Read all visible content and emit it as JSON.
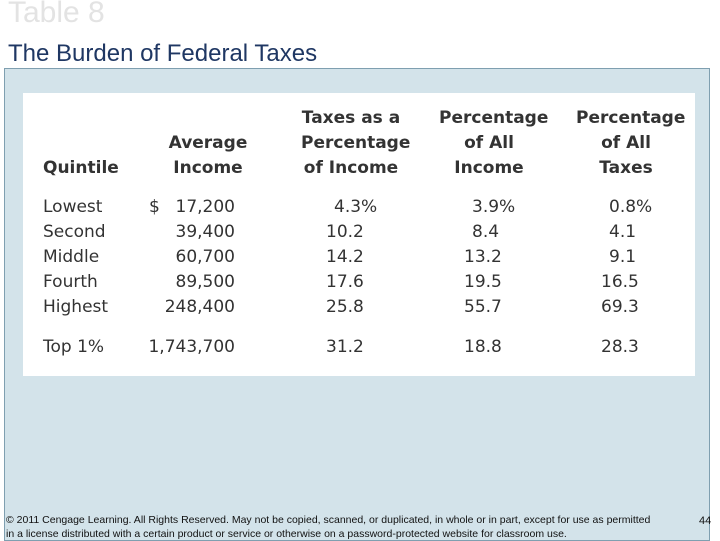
{
  "slide": {
    "label": "Table 8",
    "title": "The Burden of Federal Taxes",
    "page_number": "44",
    "footer": "© 2011 Cengage Learning. All Rights Reserved. May not be copied, scanned, or duplicated, in whole or in part, except for use as permitted in a license distributed with a certain product or service or otherwise on a password-protected website for classroom use."
  },
  "table": {
    "headers": {
      "quintile": [
        "Quintile"
      ],
      "avg_income": [
        "Average",
        "Income"
      ],
      "taxes_pct": [
        "Taxes as a",
        "Percentage",
        "of Income"
      ],
      "pct_income": [
        "Percentage",
        "of All",
        "Income"
      ],
      "pct_taxes": [
        "Percentage",
        "of All",
        "Taxes"
      ]
    },
    "dollar_sign": "$",
    "rows": [
      {
        "quintile": "Lowest",
        "avg_income": "17,200",
        "taxes_pct": "4.3%",
        "pct_income": "3.9%",
        "pct_taxes": "0.8%"
      },
      {
        "quintile": "Second",
        "avg_income": "39,400",
        "taxes_pct": "10.2",
        "pct_income": "8.4",
        "pct_taxes": "4.1"
      },
      {
        "quintile": "Middle",
        "avg_income": "60,700",
        "taxes_pct": "14.2",
        "pct_income": "13.2",
        "pct_taxes": "9.1"
      },
      {
        "quintile": "Fourth",
        "avg_income": "89,500",
        "taxes_pct": "17.6",
        "pct_income": "19.5",
        "pct_taxes": "16.5"
      },
      {
        "quintile": "Highest",
        "avg_income": "248,400",
        "taxes_pct": "25.8",
        "pct_income": "55.7",
        "pct_taxes": "69.3"
      },
      {
        "quintile": "Top 1%",
        "avg_income": "1,743,700",
        "taxes_pct": "31.2",
        "pct_income": "18.8",
        "pct_taxes": "28.3"
      }
    ]
  }
}
